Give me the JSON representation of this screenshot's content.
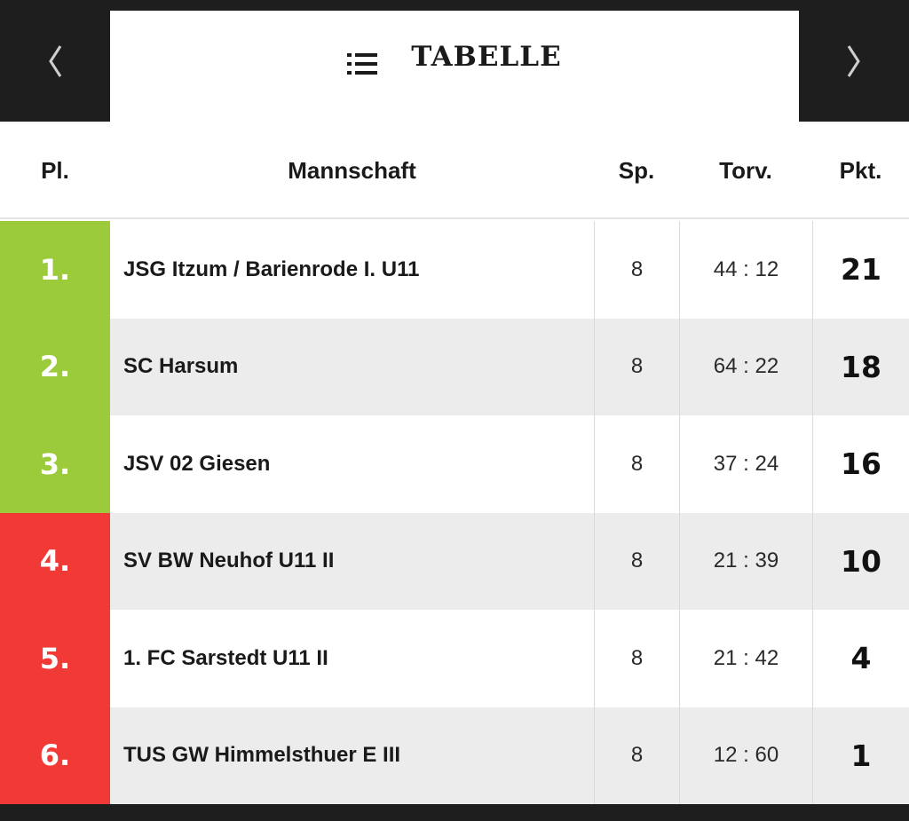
{
  "header": {
    "title": "TABELLE",
    "prev_icon": "chevron-left-icon",
    "next_icon": "chevron-right-icon",
    "menu_icon": "list-icon"
  },
  "columns": {
    "place": "Pl.",
    "team": "Mannschaft",
    "games": "Sp.",
    "goals": "Torv.",
    "points": "Pkt."
  },
  "colors": {
    "promotion": "#9bcb3b",
    "relegation": "#f13a36",
    "bar": "#1e1e1e"
  },
  "rows": [
    {
      "rank": "1.",
      "team": "JSG Itzum / Barienrode I. U11",
      "games": "8",
      "goals": "44 : 12",
      "points": "21",
      "zone": "green"
    },
    {
      "rank": "2.",
      "team": "SC Harsum",
      "games": "8",
      "goals": "64 : 22",
      "points": "18",
      "zone": "green"
    },
    {
      "rank": "3.",
      "team": "JSV 02 Giesen",
      "games": "8",
      "goals": "37 : 24",
      "points": "16",
      "zone": "green"
    },
    {
      "rank": "4.",
      "team": "SV BW Neuhof U11 II",
      "games": "8",
      "goals": "21 : 39",
      "points": "10",
      "zone": "red"
    },
    {
      "rank": "5.",
      "team": "1. FC Sarstedt U11 II",
      "games": "8",
      "goals": "21 : 42",
      "points": "4",
      "zone": "red"
    },
    {
      "rank": "6.",
      "team": "TUS GW Himmelsthuer E III",
      "games": "8",
      "goals": "12 : 60",
      "points": "1",
      "zone": "red"
    }
  ]
}
